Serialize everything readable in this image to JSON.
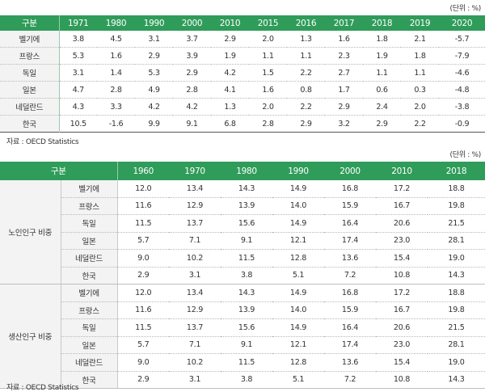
{
  "table1": {
    "unit": "(단위 : %)",
    "header": [
      "구분",
      "1971",
      "1980",
      "1990",
      "2000",
      "2010",
      "2015",
      "2016",
      "2017",
      "2018",
      "2019",
      "2020"
    ],
    "rows": [
      [
        "벨기에",
        "3.8",
        "4.5",
        "3.1",
        "3.7",
        "2.9",
        "2.0",
        "1.3",
        "1.6",
        "1.8",
        "2.1",
        "-5.7"
      ],
      [
        "프랑스",
        "5.3",
        "1.6",
        "2.9",
        "3.9",
        "1.9",
        "1.1",
        "1.1",
        "2.3",
        "1.9",
        "1.8",
        "-7.9"
      ],
      [
        "독일",
        "3.1",
        "1.4",
        "5.3",
        "2.9",
        "4.2",
        "1.5",
        "2.2",
        "2.7",
        "1.1",
        "1.1",
        "-4.6"
      ],
      [
        "일본",
        "4.7",
        "2.8",
        "4.9",
        "2.8",
        "4.1",
        "1.6",
        "0.8",
        "1.7",
        "0.6",
        "0.3",
        "-4.8"
      ],
      [
        "네덜란드",
        "4.3",
        "3.3",
        "4.2",
        "4.2",
        "1.3",
        "2.0",
        "2.2",
        "2.9",
        "2.4",
        "2.0",
        "-3.8"
      ],
      [
        "한국",
        "10.5",
        "-1.6",
        "9.9",
        "9.1",
        "6.8",
        "2.8",
        "2.9",
        "3.2",
        "2.9",
        "2.2",
        "-0.9"
      ]
    ],
    "source": "자료 : OECD Statistics"
  },
  "table2": {
    "unit": "(단위 : %)",
    "header": [
      "구분",
      "1960",
      "1970",
      "1980",
      "1990",
      "2000",
      "2010",
      "2018"
    ],
    "groups": [
      {
        "label": "노인인구 비중",
        "rows": [
          [
            "벨기에",
            "12.0",
            "13.4",
            "14.3",
            "14.9",
            "16.8",
            "17.2",
            "18.8"
          ],
          [
            "프랑스",
            "11.6",
            "12.9",
            "13.9",
            "14.0",
            "15.9",
            "16.7",
            "19.8"
          ],
          [
            "독일",
            "11.5",
            "13.7",
            "15.6",
            "14.9",
            "16.4",
            "20.6",
            "21.5"
          ],
          [
            "일본",
            "5.7",
            "7.1",
            "9.1",
            "12.1",
            "17.4",
            "23.0",
            "28.1"
          ],
          [
            "네덜란드",
            "9.0",
            "10.2",
            "11.5",
            "12.8",
            "13.6",
            "15.4",
            "19.0"
          ],
          [
            "한국",
            "2.9",
            "3.1",
            "3.8",
            "5.1",
            "7.2",
            "10.8",
            "14.3"
          ]
        ]
      },
      {
        "label": "생산인구 비중",
        "rows": [
          [
            "벨기에",
            "12.0",
            "13.4",
            "14.3",
            "14.9",
            "16.8",
            "17.2",
            "18.8"
          ],
          [
            "프랑스",
            "11.6",
            "12.9",
            "13.9",
            "14.0",
            "15.9",
            "16.7",
            "19.8"
          ],
          [
            "독일",
            "11.5",
            "13.7",
            "15.6",
            "14.9",
            "16.4",
            "20.6",
            "21.5"
          ],
          [
            "일본",
            "5.7",
            "7.1",
            "9.1",
            "12.1",
            "17.4",
            "23.0",
            "28.1"
          ],
          [
            "네덜란드",
            "9.0",
            "10.2",
            "11.5",
            "12.8",
            "13.6",
            "15.4",
            "19.0"
          ],
          [
            "한국",
            "2.9",
            "3.1",
            "3.8",
            "5.1",
            "7.2",
            "10.8",
            "14.3"
          ]
        ]
      }
    ],
    "source": "자료 : OECD Statistics"
  },
  "colors": {
    "header_bg": "#2f9c5a",
    "label_bg": "#f3f3f3"
  }
}
